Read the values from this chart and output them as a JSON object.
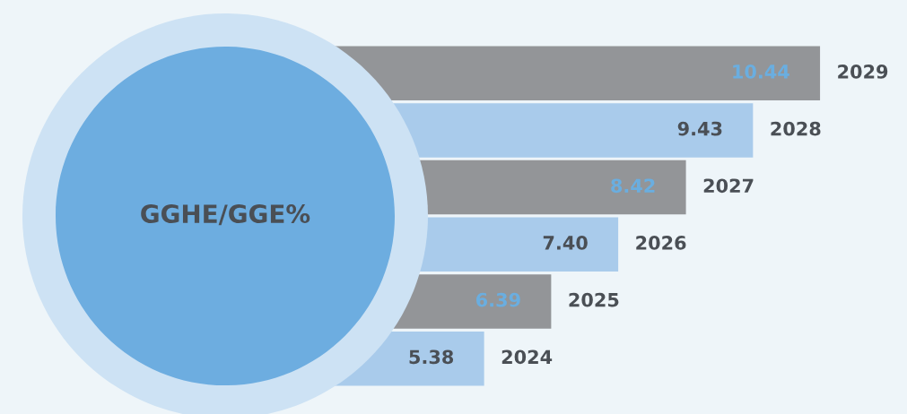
{
  "chart_data": {
    "type": "bar",
    "orientation": "horizontal",
    "title": "GGHE/GGE%",
    "categories": [
      "2029",
      "2028",
      "2027",
      "2026",
      "2025",
      "2024"
    ],
    "values": [
      10.44,
      9.43,
      8.42,
      7.4,
      6.39,
      5.38
    ],
    "colors": [
      "#939598",
      "#a9cbeb",
      "#939598",
      "#a9cbeb",
      "#939598",
      "#a9cbeb"
    ],
    "value_labels": [
      "10.44",
      "9.43",
      "8.42",
      "7.40",
      "6.39",
      "5.38"
    ],
    "xlim": [
      0,
      11.75
    ],
    "legend": false,
    "tick_labels": false
  }
}
